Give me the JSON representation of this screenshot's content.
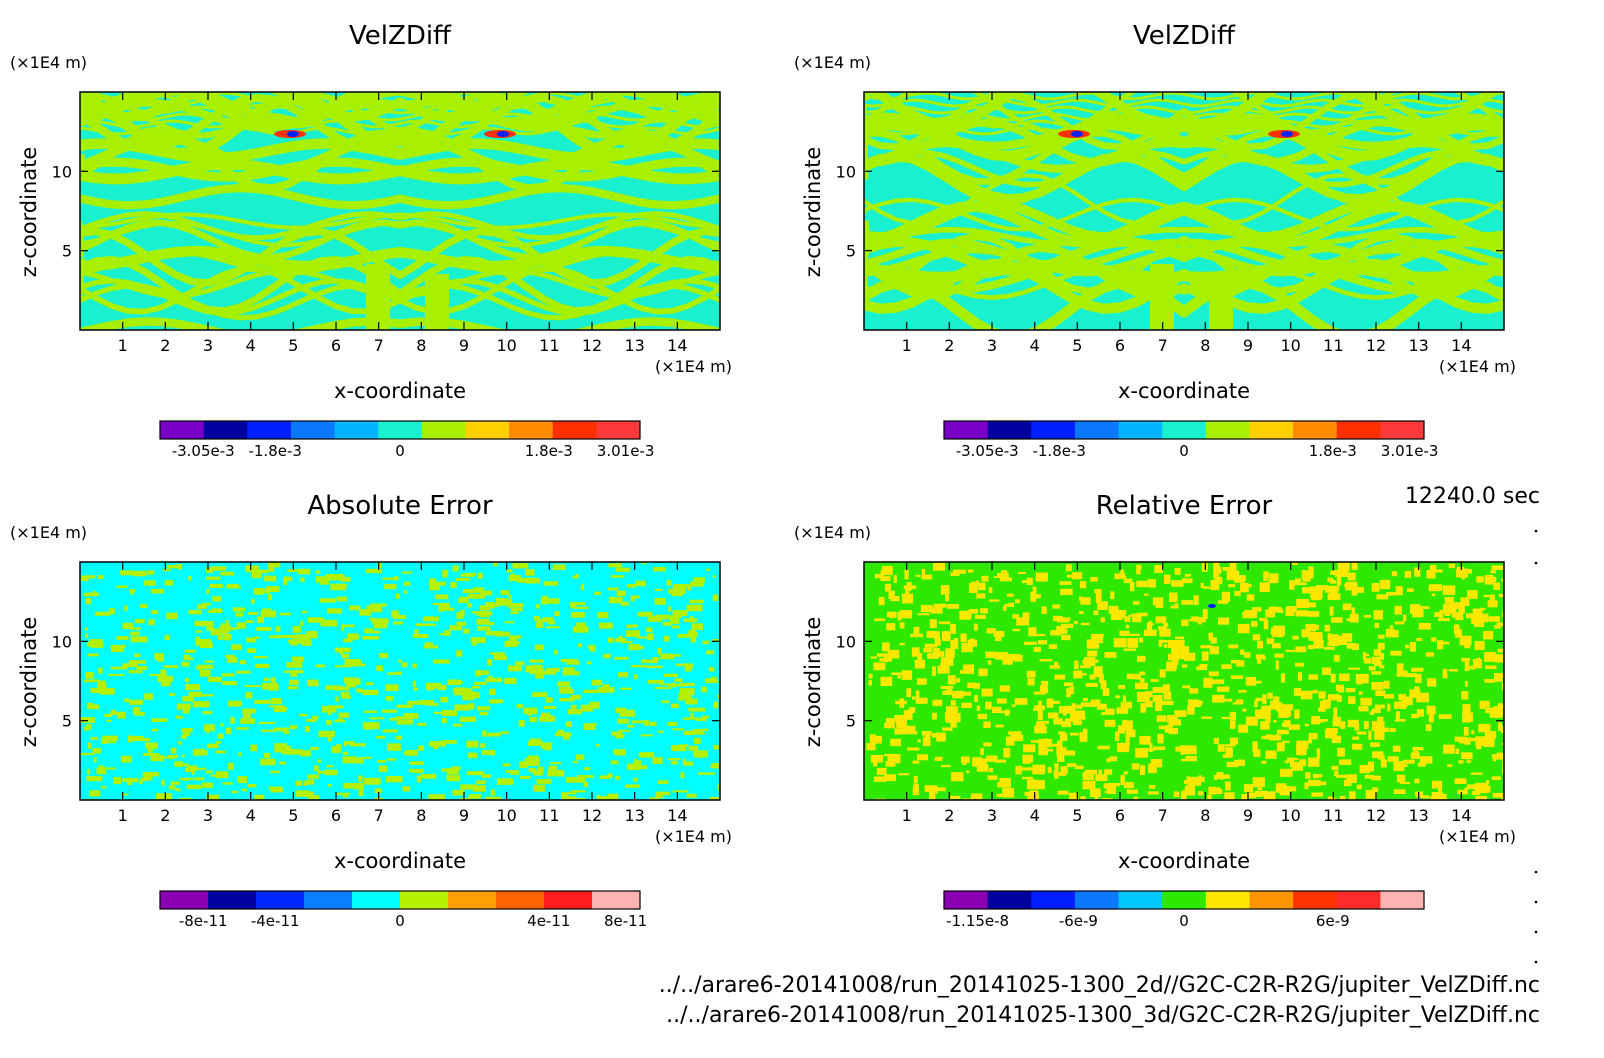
{
  "chart_data": [
    {
      "type": "heatmap",
      "title": "VelZDiff",
      "xlabel": "x-coordinate",
      "ylabel": "z-coordinate",
      "x_unit": "(×1E4 m)",
      "y_unit": "(×1E4 m)",
      "xlim": [
        0,
        15
      ],
      "ylim": [
        0,
        15
      ],
      "x_ticks": [
        "1",
        "2",
        "3",
        "4",
        "5",
        "6",
        "7",
        "8",
        "9",
        "10",
        "11",
        "12",
        "13",
        "14"
      ],
      "y_ticks": [
        "5",
        "10"
      ],
      "colorbar": {
        "colors": [
          "#7a00c8",
          "#0000a0",
          "#0020ff",
          "#0a78ff",
          "#00b4ff",
          "#19f0d0",
          "#a8f000",
          "#ffd000",
          "#ff8c00",
          "#ff3000",
          "#ff3a3a"
        ],
        "tick_labels": [
          "-3.05e-3",
          "-1.8e-3",
          "0",
          "1.8e-3",
          "3.01e-3"
        ]
      },
      "palette": [
        "#19f0d0",
        "#a8f000"
      ],
      "highlights": [
        "#ff3000",
        "#0020ff"
      ]
    },
    {
      "type": "heatmap",
      "title": "VelZDiff",
      "xlabel": "x-coordinate",
      "ylabel": "z-coordinate",
      "x_unit": "(×1E4 m)",
      "y_unit": "(×1E4 m)",
      "xlim": [
        0,
        15
      ],
      "ylim": [
        0,
        15
      ],
      "x_ticks": [
        "1",
        "2",
        "3",
        "4",
        "5",
        "6",
        "7",
        "8",
        "9",
        "10",
        "11",
        "12",
        "13",
        "14"
      ],
      "y_ticks": [
        "5",
        "10"
      ],
      "colorbar": {
        "colors": [
          "#7a00c8",
          "#0000a0",
          "#0020ff",
          "#0a78ff",
          "#00b4ff",
          "#19f0d0",
          "#a8f000",
          "#ffd000",
          "#ff8c00",
          "#ff3000",
          "#ff3a3a"
        ],
        "tick_labels": [
          "-3.05e-3",
          "-1.8e-3",
          "0",
          "1.8e-3",
          "3.01e-3"
        ]
      },
      "palette": [
        "#19f0d0",
        "#a8f000"
      ],
      "highlights": [
        "#ff3000",
        "#0020ff"
      ]
    },
    {
      "type": "heatmap",
      "title": "Absolute Error",
      "xlabel": "x-coordinate",
      "ylabel": "z-coordinate",
      "x_unit": "(×1E4 m)",
      "y_unit": "(×1E4 m)",
      "xlim": [
        0,
        15
      ],
      "ylim": [
        0,
        15
      ],
      "x_ticks": [
        "1",
        "2",
        "3",
        "4",
        "5",
        "6",
        "7",
        "8",
        "9",
        "10",
        "11",
        "12",
        "13",
        "14"
      ],
      "y_ticks": [
        "5",
        "10"
      ],
      "colorbar": {
        "colors": [
          "#8c00b4",
          "#0000a0",
          "#0028ff",
          "#0a80ff",
          "#00ffff",
          "#b4f000",
          "#ffa000",
          "#ff6400",
          "#ff1e1e",
          "#ffb4b4"
        ],
        "tick_labels": [
          "-8e-11",
          "-4e-11",
          "0",
          "4e-11",
          "8e-11"
        ]
      },
      "palette": [
        "#00ffff",
        "#b4f000"
      ],
      "highlights": []
    },
    {
      "type": "heatmap",
      "title": "Relative Error",
      "xlabel": "x-coordinate",
      "ylabel": "z-coordinate",
      "x_unit": "(×1E4 m)",
      "y_unit": "(×1E4 m)",
      "xlim": [
        0,
        15
      ],
      "ylim": [
        0,
        15
      ],
      "x_ticks": [
        "1",
        "2",
        "3",
        "4",
        "5",
        "6",
        "7",
        "8",
        "9",
        "10",
        "11",
        "12",
        "13",
        "14"
      ],
      "y_ticks": [
        "5",
        "10"
      ],
      "colorbar": {
        "colors": [
          "#8c00b4",
          "#0000a0",
          "#0020ff",
          "#0a78ff",
          "#00c8ff",
          "#2ee800",
          "#ffe800",
          "#ff9600",
          "#ff3200",
          "#ff2a2a",
          "#ffb4b4"
        ],
        "tick_labels": [
          "-1.15e-8",
          "-6e-9",
          "0",
          "6e-9"
        ]
      },
      "palette": [
        "#2ee800",
        "#ffe800"
      ],
      "highlights": [
        "#0020ff"
      ]
    }
  ],
  "time_label": "12240.0 sec",
  "footer_lines": [
    "../../arare6-20141008/run_20141025-1300_2d//G2C-C2R-R2G/jupiter_VelZDiff.nc",
    "../../arare6-20141008/run_20141025-1300_3d/G2C-C2R-R2G/jupiter_VelZDiff.nc"
  ]
}
